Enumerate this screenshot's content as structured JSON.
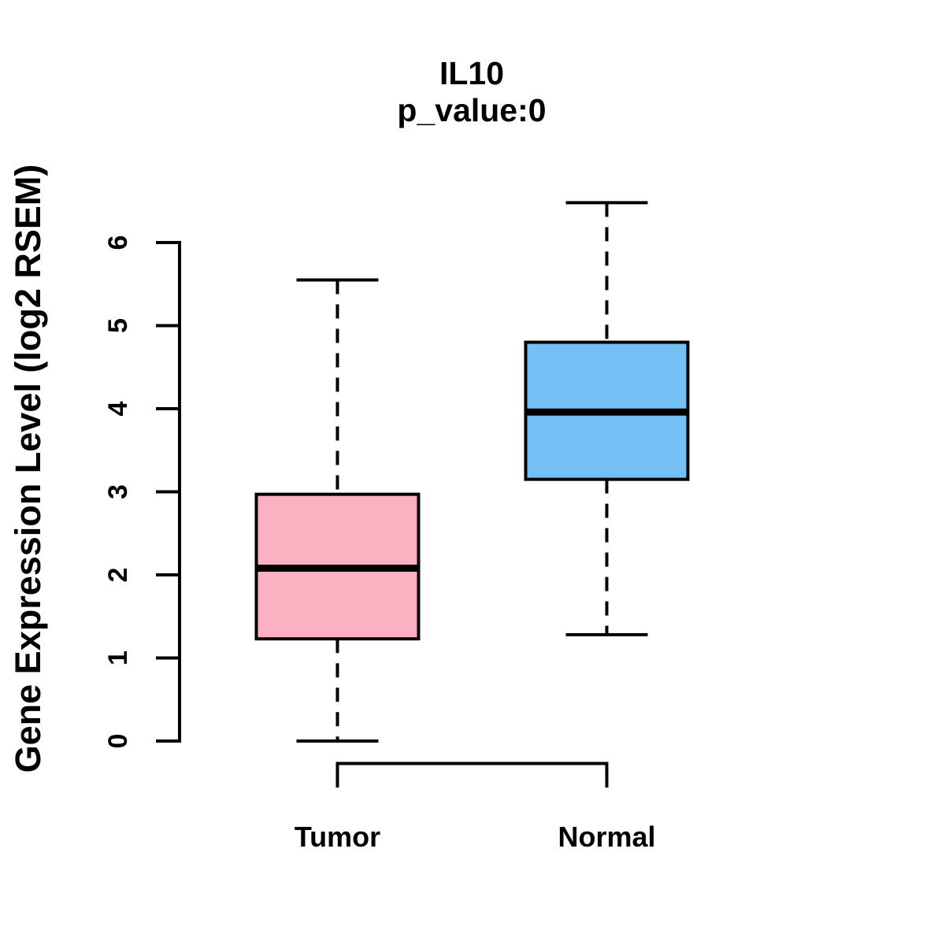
{
  "chart_data": {
    "type": "boxplot",
    "title": "IL10",
    "subtitle": "p_value:0",
    "ylabel": "Gene Expression Level (log2 RSEM)",
    "xlabel": "",
    "categories": [
      "Tumor",
      "Normal"
    ],
    "y_ticks": [
      0,
      1,
      2,
      3,
      4,
      5,
      6
    ],
    "ylim": [
      0,
      6.6
    ],
    "grid": false,
    "legend": false,
    "series": [
      {
        "name": "Tumor",
        "whisker_low": 0.0,
        "q1": 1.23,
        "median": 2.08,
        "q3": 2.97,
        "whisker_high": 5.55,
        "color": "#FBB1C2"
      },
      {
        "name": "Normal",
        "whisker_low": 1.28,
        "q1": 3.15,
        "median": 3.96,
        "q3": 4.8,
        "whisker_high": 6.48,
        "color": "#74BFF4"
      }
    ]
  },
  "colors": {
    "line": "#000000",
    "text": "#000000",
    "background": "#FFFFFF",
    "tumor_fill": "#FBB1C2",
    "normal_fill": "#74BFF4"
  }
}
